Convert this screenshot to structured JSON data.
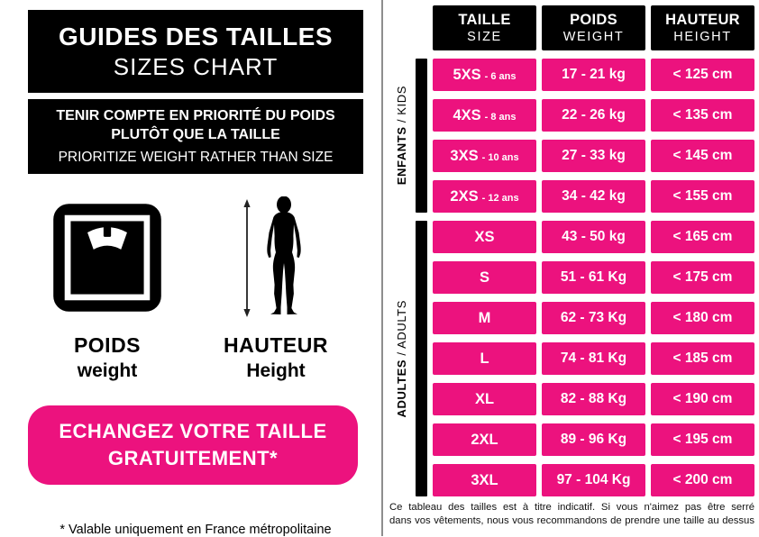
{
  "left_panel": {
    "title": {
      "fr": "GUIDES DES TAILLES",
      "en": "SIZES CHART"
    },
    "notice": {
      "fr_line1": "TENIR COMPTE EN PRIORITÉ DU POIDS",
      "fr_line2": "PLUTÔT QUE LA TAILLE",
      "en": "PRIORITIZE WEIGHT RATHER THAN SIZE"
    },
    "weight_legend": {
      "icon": "bathroom-scale-icon",
      "fr": "POIDS",
      "en": "weight"
    },
    "height_legend": {
      "icon": "person-height-icon",
      "fr": "HAUTEUR",
      "en": "Height"
    },
    "exchange_banner": {
      "line1": "ECHANGEZ VOTRE TAILLE",
      "line2": "GRATUITEMENT*"
    },
    "footnote": "* Valable uniquement en France métropolitaine"
  },
  "table": {
    "headers": {
      "size": {
        "fr": "TAILLE",
        "en": "SIZE"
      },
      "weight": {
        "fr": "POIDS",
        "en": "WEIGHT"
      },
      "height": {
        "fr": "HAUTEUR",
        "en": "HEIGHT"
      }
    },
    "groups": [
      {
        "id": "kids",
        "label_fr": "ENFANTS",
        "label_suffix": " / KIDS",
        "rows": [
          {
            "size": "5XS",
            "age": "- 6 ans",
            "weight": "17 - 21 kg",
            "height": "< 125 cm"
          },
          {
            "size": "4XS",
            "age": "- 8 ans",
            "weight": "22 - 26 kg",
            "height": "< 135 cm"
          },
          {
            "size": "3XS",
            "age": "- 10 ans",
            "weight": "27 - 33 kg",
            "height": "< 145 cm"
          },
          {
            "size": "2XS",
            "age": "- 12 ans",
            "weight": "34 - 42 kg",
            "height": "< 155 cm"
          }
        ]
      },
      {
        "id": "adults",
        "label_fr": "ADULTES",
        "label_suffix": " / ADULTS",
        "rows": [
          {
            "size": "XS",
            "weight": "43 - 50 kg",
            "height": "< 165 cm"
          },
          {
            "size": "S",
            "weight": "51 - 61 Kg",
            "height": "< 175 cm"
          },
          {
            "size": "M",
            "weight": "62 - 73 Kg",
            "height": "< 180 cm"
          },
          {
            "size": "L",
            "weight": "74 - 81 Kg",
            "height": "< 185 cm"
          },
          {
            "size": "XL",
            "weight": "82 - 88 Kg",
            "height": "< 190 cm"
          },
          {
            "size": "2XL",
            "weight": "89 - 96 Kg",
            "height": "< 195 cm"
          },
          {
            "size": "3XL",
            "weight": "97 - 104 Kg",
            "height": "< 200 cm"
          }
        ]
      }
    ],
    "disclaimer": {
      "line1": "Ce tableau des tailles est à titre indicatif. Si vous n'aimez pas être serré",
      "line2": "dans vos vêtements, nous vous recommandons de prendre une taille au dessus"
    }
  },
  "colors": {
    "pink": "#EC127E",
    "table_black": "#000000",
    "divider_gray": "#8E8E8E"
  }
}
